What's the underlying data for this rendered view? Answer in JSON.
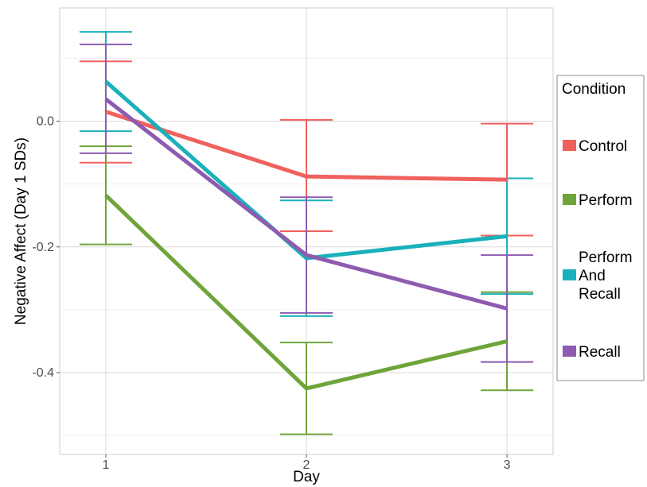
{
  "chart_data": {
    "type": "line",
    "xlabel": "Day",
    "ylabel": "Negative Affect (Day 1 SDs)",
    "x": [
      1,
      2,
      3
    ],
    "x_tick_labels": [
      "1",
      "2",
      "3"
    ],
    "xlim": [
      0.77,
      3.23
    ],
    "ylim": [
      -0.53,
      0.18
    ],
    "y_ticks": [
      0.0,
      -0.2,
      -0.4
    ],
    "y_tick_labels": [
      "0.0",
      "-0.2",
      "-0.4"
    ],
    "grid": true,
    "legend_title": "Condition",
    "legend_position": "right",
    "series": [
      {
        "name": "Control",
        "color": "#F0605D",
        "values": [
          0.015,
          -0.088,
          -0.093
        ],
        "error_low": [
          -0.066,
          -0.175,
          -0.182
        ],
        "error_high": [
          0.095,
          0.002,
          -0.004
        ]
      },
      {
        "name": "Perform",
        "color": "#6FA43A",
        "values": [
          -0.118,
          -0.425,
          -0.35
        ],
        "error_low": [
          -0.196,
          -0.498,
          -0.428
        ],
        "error_high": [
          -0.04,
          -0.352,
          -0.272
        ]
      },
      {
        "name": "Perform And Recall",
        "color": "#1BB1BB",
        "values": [
          0.063,
          -0.218,
          -0.183
        ],
        "error_low": [
          -0.016,
          -0.31,
          -0.275
        ],
        "error_high": [
          0.142,
          -0.126,
          -0.091
        ]
      },
      {
        "name": "Recall",
        "color": "#8D5BB0",
        "values": [
          0.035,
          -0.213,
          -0.298
        ],
        "error_low": [
          -0.051,
          -0.305,
          -0.383
        ],
        "error_high": [
          0.122,
          -0.121,
          -0.213
        ]
      }
    ],
    "legend_labels": [
      {
        "lines": [
          "Control"
        ]
      },
      {
        "lines": [
          "Perform"
        ]
      },
      {
        "lines": [
          "Perform",
          "And",
          "Recall"
        ]
      },
      {
        "lines": [
          "Recall"
        ]
      }
    ]
  }
}
